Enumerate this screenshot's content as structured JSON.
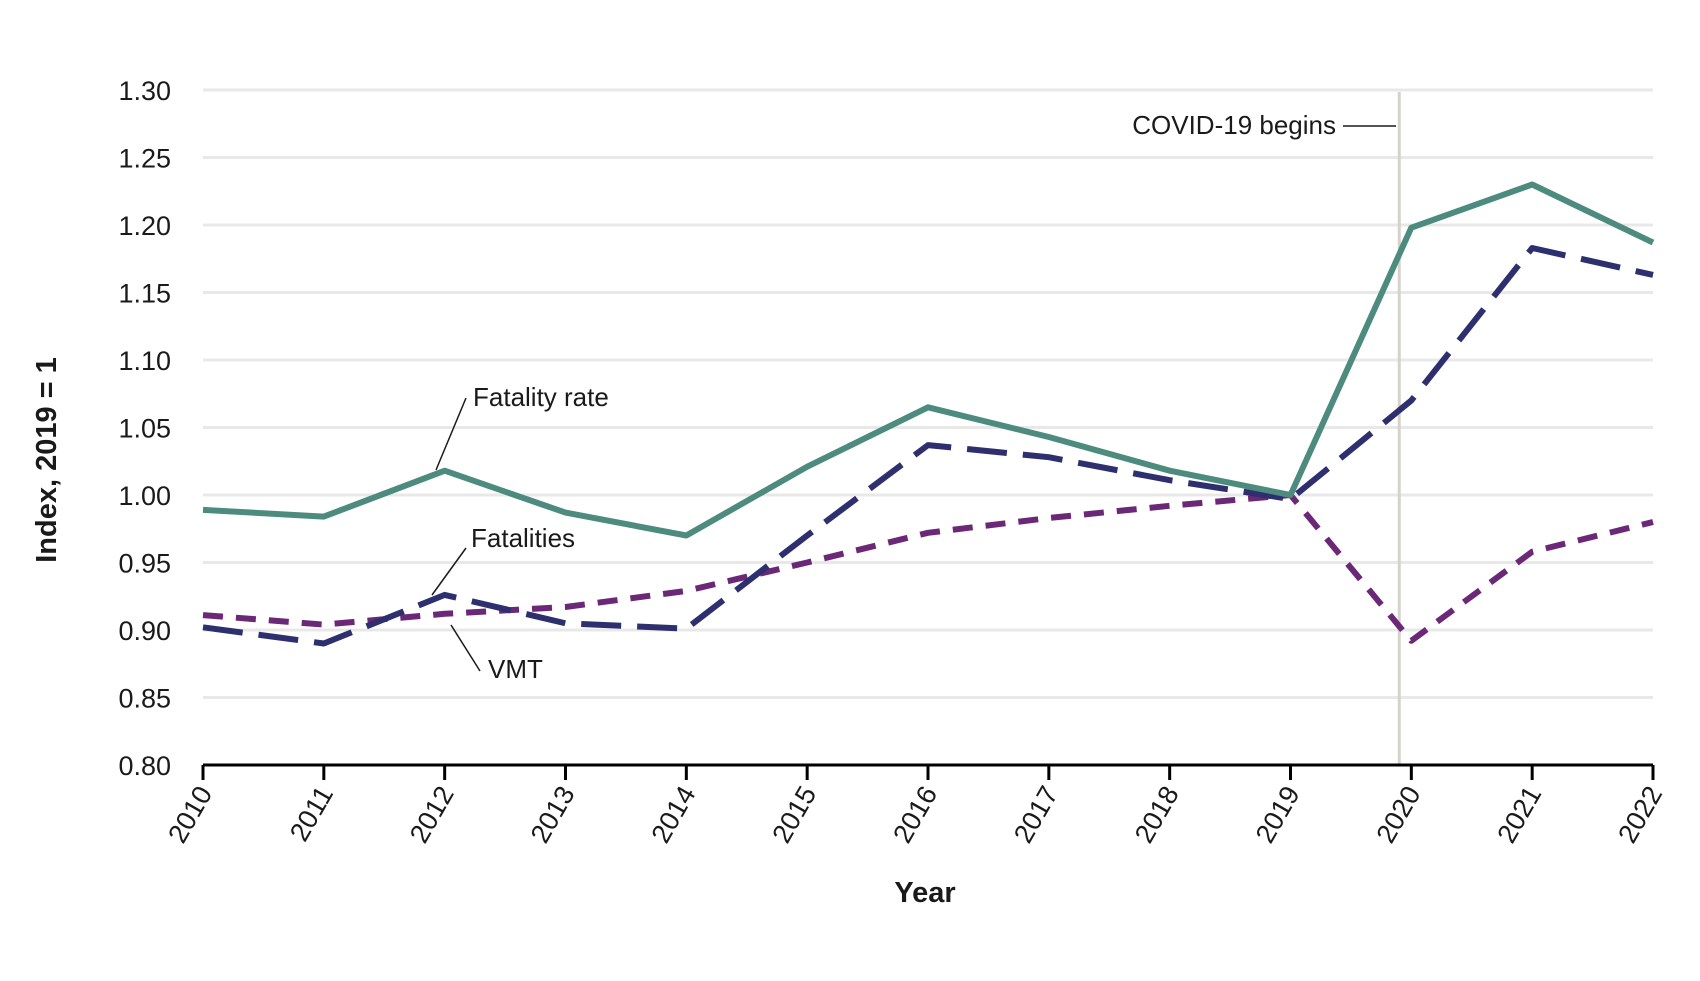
{
  "chart_data": {
    "type": "line",
    "title": "",
    "xlabel": "Year",
    "ylabel": "Index, 2019 = 1",
    "x": [
      "2010",
      "2011",
      "2012",
      "2013",
      "2014",
      "2015",
      "2016",
      "2017",
      "2018",
      "2019",
      "2020",
      "2021",
      "2022"
    ],
    "ylim": [
      0.8,
      1.3
    ],
    "yticks": [
      "0.80",
      "0.85",
      "0.90",
      "0.95",
      "1.00",
      "1.05",
      "1.10",
      "1.15",
      "1.20",
      "1.25",
      "1.30"
    ],
    "grid": true,
    "series": [
      {
        "name": "Fatality rate",
        "style": "solid",
        "color": "#4e8b7f",
        "values": [
          0.989,
          0.984,
          1.018,
          0.987,
          0.97,
          1.021,
          1.065,
          1.043,
          1.018,
          1.0,
          1.198,
          1.23,
          1.187
        ]
      },
      {
        "name": "Fatalities",
        "style": "long-dash",
        "color": "#2e2f6e",
        "values": [
          0.902,
          0.89,
          0.926,
          0.905,
          0.901,
          0.97,
          1.037,
          1.028,
          1.011,
          0.997,
          1.07,
          1.183,
          1.163
        ]
      },
      {
        "name": "VMT",
        "style": "short-dash",
        "color": "#6a2877",
        "values": [
          0.911,
          0.904,
          0.912,
          0.917,
          0.929,
          0.95,
          0.972,
          0.983,
          0.992,
          1.0,
          0.892,
          0.958,
          0.98
        ]
      }
    ],
    "annotations": {
      "covid_label": "COVID-19 begins",
      "covid_year": 2019.9
    }
  }
}
